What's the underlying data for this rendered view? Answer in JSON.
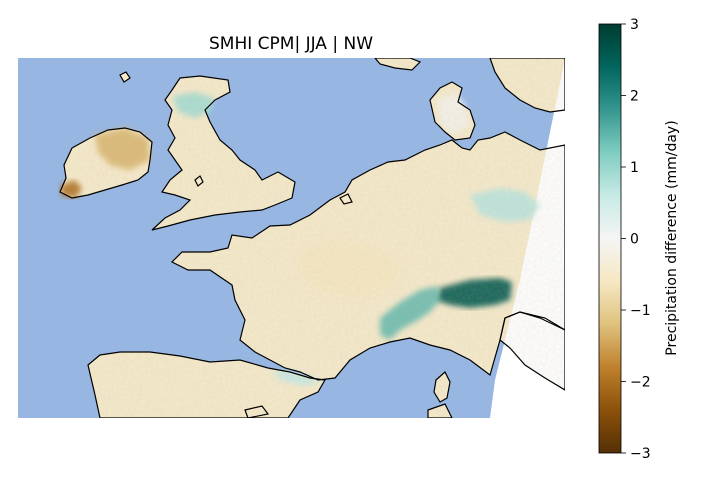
{
  "title": "SMHI CPM| JJA | NW",
  "colorbar": {
    "label": "Precipitation difference (mm/day)",
    "ticks": [
      "3",
      "2",
      "1",
      "0",
      "−1",
      "−2",
      "−3"
    ],
    "range": [
      -3,
      3
    ],
    "colormap": "BrBG",
    "stops": [
      "#543005",
      "#8c510a",
      "#bf812d",
      "#dfc27d",
      "#f6e8c3",
      "#f5f5f5",
      "#c7eae5",
      "#80cdc1",
      "#35978f",
      "#01665e",
      "#003c30"
    ]
  },
  "map": {
    "ocean_color": "#97b6e1",
    "land_base_value": -0.5,
    "regions": [
      {
        "name": "alps-wet",
        "value": 2.6
      },
      {
        "name": "alps-moderate",
        "value": 1.4
      },
      {
        "name": "germany-wet",
        "value": 0.7
      },
      {
        "name": "scotland-wet",
        "value": 0.9
      },
      {
        "name": "ireland-dry",
        "value": -1.3
      },
      {
        "name": "ireland-southwest-dry",
        "value": -2.0
      },
      {
        "name": "pyrenees-wet",
        "value": 0.6
      },
      {
        "name": "france-dry",
        "value": -0.6
      },
      {
        "name": "denmark-mixed",
        "value": -0.1
      }
    ]
  }
}
